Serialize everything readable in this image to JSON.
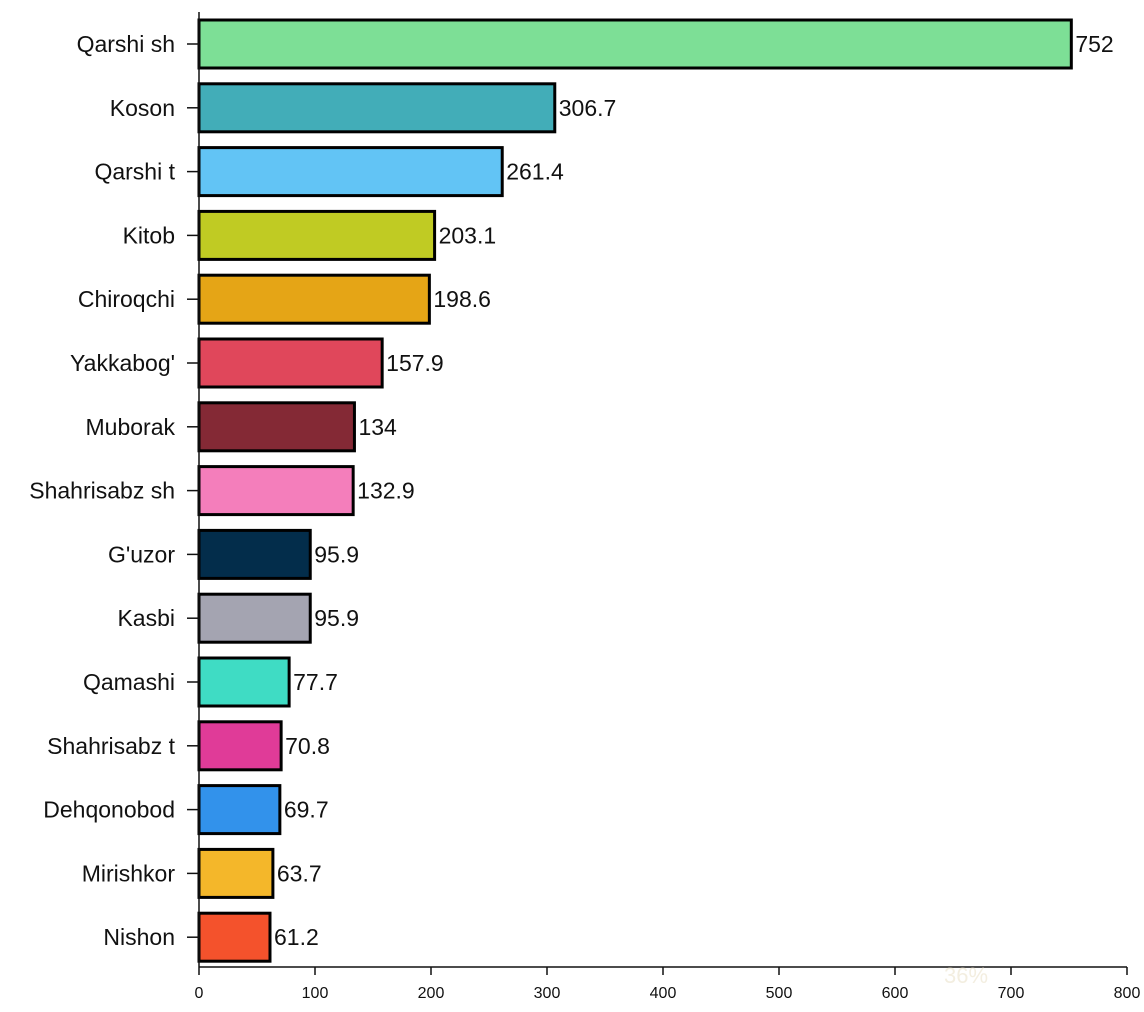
{
  "chart_data": {
    "type": "bar",
    "orientation": "horizontal",
    "categories": [
      "Qarshi sh",
      "Koson",
      "Qarshi t",
      "Kitob",
      "Chiroqchi",
      "Yakkabog'",
      "Muborak",
      "Shahrisabz sh",
      "G'uzor",
      "Kasbi",
      "Qamashi",
      "Shahrisabz t",
      "Dehqonobod",
      "Mirishkor",
      "Nishon"
    ],
    "values": [
      752,
      306.7,
      261.4,
      203.1,
      198.6,
      157.9,
      134,
      132.9,
      95.9,
      95.9,
      77.7,
      70.8,
      69.7,
      63.7,
      61.2
    ],
    "value_labels": [
      "752",
      "306.7",
      "261.4",
      "203.1",
      "198.6",
      "157.9",
      "134",
      "132.9",
      "95.9",
      "95.9",
      "77.7",
      "70.8",
      "69.7",
      "63.7",
      "61.2"
    ],
    "colors": [
      "#7ddf96",
      "#42adb8",
      "#62c4f5",
      "#c0cb23",
      "#e5a516",
      "#e0475b",
      "#842935",
      "#f47ebb",
      "#032d4b",
      "#a4a4b1",
      "#3fdcc4",
      "#e03b98",
      "#3292eb",
      "#f4b72a",
      "#f4522c"
    ],
    "x_ticks": [
      0,
      100,
      200,
      300,
      400,
      500,
      600,
      700,
      800
    ],
    "xlim": [
      0,
      800
    ],
    "title": "",
    "xlabel": "",
    "ylabel": "",
    "grid": false,
    "watermark": "36%"
  }
}
